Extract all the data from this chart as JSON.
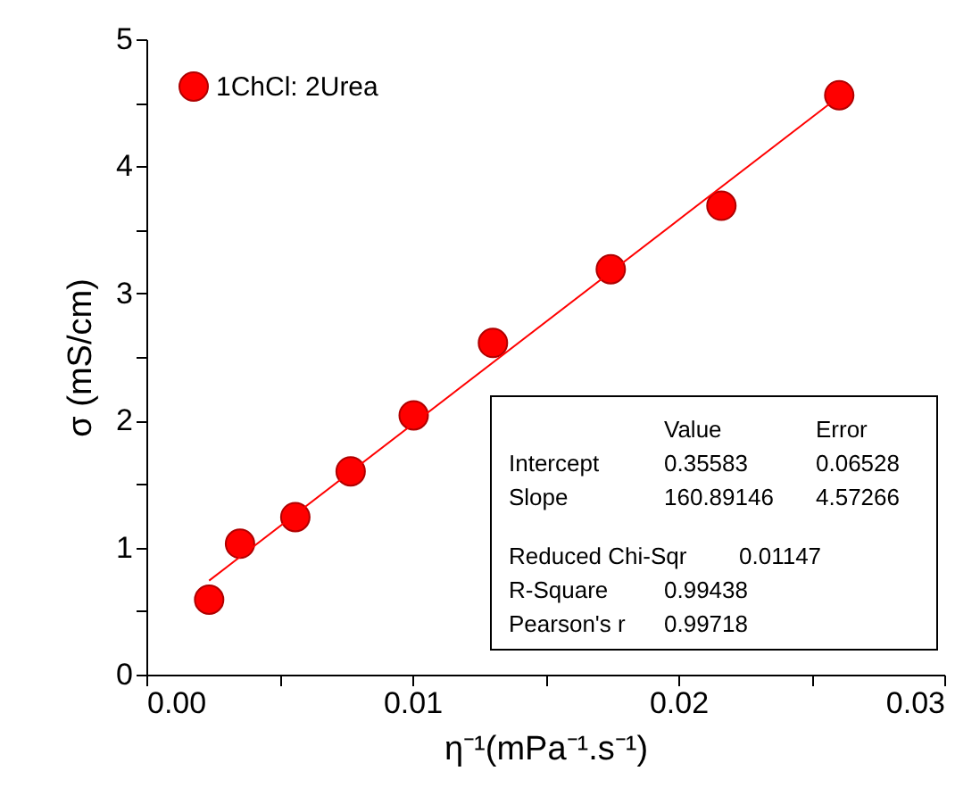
{
  "chart_data": {
    "type": "scatter",
    "xlabel": "η⁻¹(mPa⁻¹.s⁻¹)",
    "ylabel": "σ (mS/cm)",
    "series": [
      {
        "name": "1ChCl: 2Urea",
        "color": "#ff0000",
        "x": [
          0.00236,
          0.00352,
          0.0056,
          0.00768,
          0.01005,
          0.01303,
          0.01746,
          0.02162,
          0.02605
        ],
        "values": [
          0.59,
          1.03,
          1.24,
          1.6,
          2.04,
          2.61,
          3.19,
          3.69,
          4.56
        ]
      },
      {
        "type": "line",
        "marker": "none",
        "color": "#ff0000",
        "x": [
          0.00236,
          0.02605
        ],
        "values": [
          0.74,
          4.55
        ]
      }
    ],
    "xlim": [
      0,
      0.03
    ],
    "ylim": [
      0,
      5
    ],
    "xticks": [
      "0.00",
      {
        "value": 0.005,
        "label": null
      },
      {
        "value": 0.01,
        "label": "0.01"
      },
      {
        "value": 0.015,
        "label": null
      },
      {
        "value": 0.02,
        "label": "0.02"
      },
      {
        "value": 0.025,
        "label": null
      },
      {
        "value": 0.03,
        "label": "0.03"
      }
    ],
    "yticks": [
      0,
      {
        "value": 0.5,
        "label": null
      },
      1,
      {
        "value": 1.5,
        "label": null
      },
      2,
      {
        "value": 2.5,
        "label": null
      },
      3,
      {
        "value": 3.5,
        "label": null
      },
      4,
      {
        "value": 4.5,
        "label": null
      },
      5
    ],
    "annotations": [
      "Value",
      "Error",
      "Intercept",
      "0.35583",
      "0.06528",
      "Slope",
      "160.89146",
      "4.57266",
      "Reduced Chi-Sqr",
      "0.01147",
      "R-Square",
      "0.99438",
      "Pearson's r",
      "0.99718"
    ],
    "grid": false,
    "legend": "top left",
    "marker": "circle",
    "line_style": "solid"
  }
}
